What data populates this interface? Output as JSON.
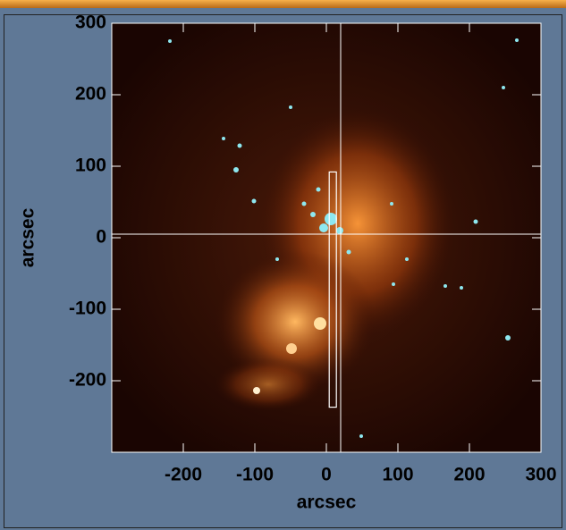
{
  "chart_data": {
    "type": "image",
    "x_label": "arcsec",
    "y_label": "arcsec",
    "xlim": [
      -300,
      300
    ],
    "ylim": [
      -300,
      300
    ],
    "xticks": [
      -200,
      -100,
      0,
      100,
      200,
      300
    ],
    "yticks": [
      -200,
      -100,
      0,
      100,
      200,
      300
    ],
    "crosshair": {
      "x": 20,
      "y": 5
    },
    "slit": {
      "x": [
        4,
        14
      ],
      "y": [
        -237,
        92
      ]
    },
    "overlay_color": "#ffffff"
  }
}
